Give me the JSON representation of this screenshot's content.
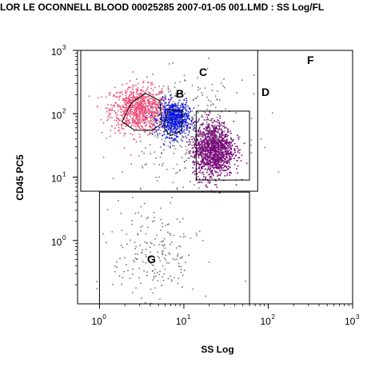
{
  "title": "LOR LE OCONNELL BLOOD 00025285 2007-01-05 001.LMD : SS Log/FL",
  "chart_data": {
    "type": "scatter",
    "xlabel": "SS Log",
    "ylabel": "CD45 PC5",
    "xscale": "log",
    "yscale": "log",
    "xlim": [
      1,
      1000
    ],
    "ylim": [
      0.1,
      1000
    ],
    "x_ticks": [
      {
        "value": 1,
        "label": "10",
        "exp": "0"
      },
      {
        "value": 10,
        "label": "10",
        "exp": "1"
      },
      {
        "value": 100,
        "label": "10",
        "exp": "2"
      },
      {
        "value": 1000,
        "label": "10",
        "exp": "3"
      }
    ],
    "y_ticks": [
      {
        "value": 1,
        "label": "10",
        "exp": "0"
      },
      {
        "value": 10,
        "label": "10",
        "exp": "1"
      },
      {
        "value": 100,
        "label": "10",
        "exp": "2"
      },
      {
        "value": 1000,
        "label": "10",
        "exp": "3"
      }
    ],
    "regions": [
      {
        "label": "B",
        "shape": "polygon",
        "vertices": [
          [
            2.4,
            150
          ],
          [
            3.5,
            210
          ],
          [
            5.2,
            160
          ],
          [
            5.5,
            70
          ],
          [
            4.2,
            55
          ],
          [
            2.6,
            55
          ],
          [
            1.85,
            75
          ]
        ],
        "color": "#000000"
      },
      {
        "label": "C",
        "shape": "polygon",
        "vertices": [
          [
            6.5,
            115
          ],
          [
            9.5,
            110
          ],
          [
            9.5,
            55
          ],
          [
            6.9,
            45
          ],
          [
            5.8,
            60
          ]
        ],
        "color": "#000000"
      },
      {
        "label": "D",
        "shape": "rectangle",
        "x": [
          14,
          60
        ],
        "y": [
          9,
          110
        ],
        "color": "#000000"
      },
      {
        "label": "F",
        "shape": "rectangle",
        "x": [
          0.6,
          75
        ],
        "y": [
          6,
          1000
        ],
        "color": "#000000"
      },
      {
        "label": "G",
        "shape": "rectangle",
        "x": [
          1,
          60
        ],
        "y": [
          0.1,
          5.8
        ],
        "color": "#000000"
      }
    ],
    "populations": [
      {
        "name": "",
        "color": "#f0507a",
        "center": [
          2.9,
          120
        ],
        "spread": [
          0.17,
          0.18
        ],
        "count": 900
      },
      {
        "name": "",
        "color": "#0a16e6",
        "center": [
          7.5,
          85
        ],
        "spread": [
          0.09,
          0.14
        ],
        "count": 650
      },
      {
        "name": "",
        "color": "#7a0a7a",
        "center": [
          22,
          28
        ],
        "spread": [
          0.12,
          0.22
        ],
        "count": 1300
      },
      {
        "name": "",
        "color": "#777777",
        "center": [
          10,
          60
        ],
        "spread": [
          0.35,
          0.4
        ],
        "count": 350
      },
      {
        "name": "",
        "color": "#777777",
        "center": [
          4.5,
          0.6
        ],
        "spread": [
          0.25,
          0.45
        ],
        "count": 220
      }
    ]
  }
}
